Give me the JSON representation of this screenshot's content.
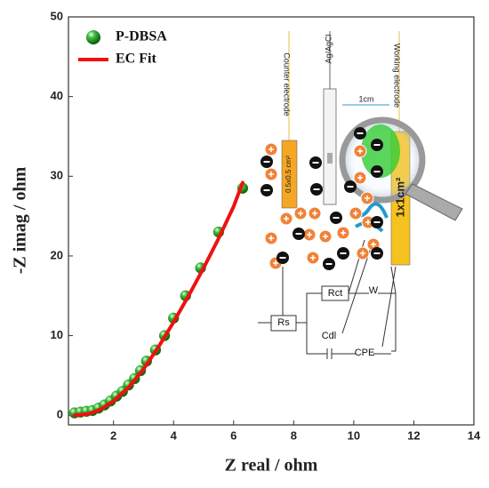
{
  "chart_data": {
    "type": "scatter",
    "xlabel": "Z real / ohm",
    "ylabel": "-Z imag / ohm",
    "xlim": [
      0.5,
      14
    ],
    "xticks": [
      2,
      4,
      6,
      8,
      10,
      12,
      14
    ],
    "ylim": [
      -1.2,
      50
    ],
    "yticks": [
      0,
      10,
      20,
      30,
      40,
      50
    ],
    "legend": "upper left",
    "series": [
      {
        "name": "P-DBSA",
        "type": "scatter",
        "color": "#1f9a1f",
        "x": [
          0.7,
          0.9,
          1.1,
          1.3,
          1.5,
          1.7,
          1.9,
          2.1,
          2.3,
          2.5,
          2.7,
          2.9,
          3.1,
          3.4,
          3.7,
          4.0,
          4.4,
          4.9,
          5.5,
          6.3
        ],
        "values": [
          0.3,
          0.4,
          0.5,
          0.6,
          0.9,
          1.3,
          1.8,
          2.4,
          3.0,
          3.8,
          4.6,
          5.6,
          6.8,
          8.2,
          10,
          12.2,
          15,
          18.5,
          23,
          28.5
        ]
      },
      {
        "name": "EC Fit",
        "type": "line",
        "color": "#ee1111",
        "x": [
          0.7,
          1.2,
          1.6,
          2,
          2.5,
          3,
          3.5,
          4,
          4.5,
          5,
          5.5,
          6,
          6.3
        ],
        "values": [
          0,
          0.2,
          0.8,
          1.8,
          3.5,
          5.8,
          8.6,
          11.7,
          15,
          18.5,
          22.2,
          26.2,
          29.2
        ]
      }
    ],
    "inset_labels": [
      "Counter electrode",
      "Ag/AgCl",
      "Working electrode",
      "1cm",
      "0.5x0.5 cm²",
      "1x1cm²",
      "Rct",
      "W",
      "Rs",
      "Cdl",
      "CPE"
    ]
  }
}
